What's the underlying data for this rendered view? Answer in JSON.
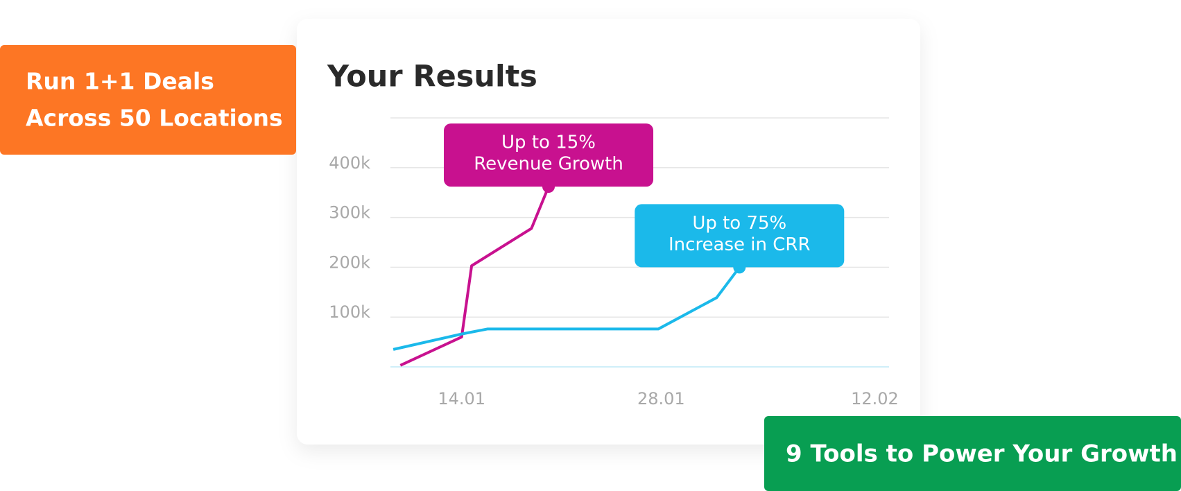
{
  "badges": {
    "top_left": [
      "Run 1+1 Deals",
      "Across 50 Locations"
    ],
    "bottom_right": "9 Tools to Power Your Growth"
  },
  "chart_data": {
    "type": "line",
    "title": "Your Results",
    "xlim": [
      9,
      44
    ],
    "xticks": [
      {
        "value": 14,
        "label": "14.01"
      },
      {
        "value": 28,
        "label": "28.01"
      },
      {
        "value": 43,
        "label": "12.02"
      }
    ],
    "ylim": [
      0,
      500000
    ],
    "yticks": [
      {
        "value": 100000,
        "label": "100k"
      },
      {
        "value": 200000,
        "label": "200k"
      },
      {
        "value": 300000,
        "label": "300k"
      },
      {
        "value": 400000,
        "label": "400k"
      }
    ],
    "grid": true,
    "series": [
      {
        "color": "#c8118f",
        "x": [
          9.7,
          14,
          14.7,
          18.9,
          20.1
        ],
        "values": [
          3000,
          60000,
          203000,
          278000,
          362000
        ],
        "annotation": [
          "Up to 15%",
          "Revenue Growth"
        ]
      },
      {
        "color": "#1bb9ea",
        "x": [
          9.2,
          14,
          15.8,
          27.8,
          31.9,
          33.5
        ],
        "values": [
          35000,
          66000,
          76000,
          76000,
          139000,
          200000
        ],
        "annotation": [
          "Up to 75%",
          "Increase in CRR"
        ]
      }
    ]
  }
}
